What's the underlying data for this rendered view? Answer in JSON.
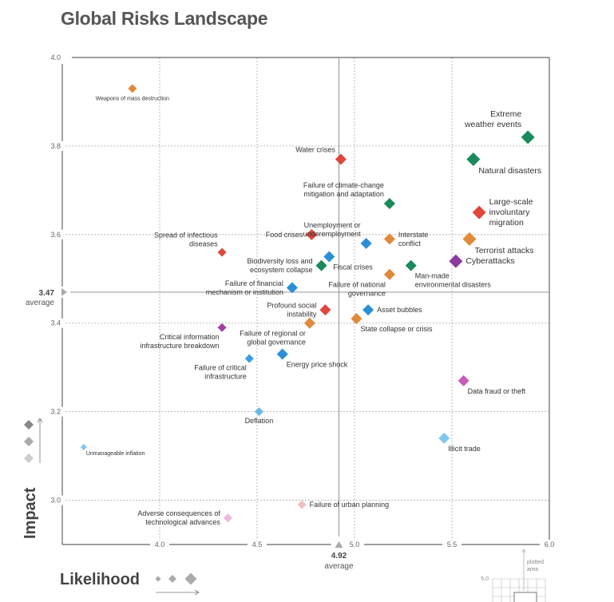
{
  "chart_data": {
    "type": "scatter",
    "title": "Global Risks Landscape",
    "xlabel": "Likelihood",
    "ylabel": "Impact",
    "xlim": [
      3.5,
      6.0
    ],
    "ylim": [
      2.9,
      4.0
    ],
    "x_ticks": [
      "4.0",
      "4.5",
      "5.0",
      "5.5",
      "6.0"
    ],
    "x_tick_values": [
      4.0,
      4.5,
      5.0,
      5.5,
      6.0
    ],
    "y_ticks": [
      "4.0",
      "3.8",
      "3.6",
      "3.4",
      "3.2",
      "3.0"
    ],
    "y_tick_values": [
      4.0,
      3.8,
      3.6,
      3.4,
      3.2,
      3.0
    ],
    "grid": true,
    "x_average": {
      "value": 4.92,
      "label": "4.92",
      "text": "average"
    },
    "y_average": {
      "value": 3.47,
      "label": "3.47",
      "text": "average"
    },
    "category_colors": {
      "economic": "#2b8fd6",
      "environmental": "#1a8a5a",
      "geopolitical": "#e08a3a",
      "societal": "#e0463a",
      "technological": "#8e3a9e"
    },
    "points": [
      {
        "name": "Weapons of mass destruction",
        "lines": [
          "Weapons of mass destruction"
        ],
        "x": 3.86,
        "y": 3.93,
        "color": "#e08a3a",
        "size": "small",
        "label_pos": "below"
      },
      {
        "name": "Extreme weather events",
        "lines": [
          "Extreme",
          "weather events"
        ],
        "x": 5.89,
        "y": 3.82,
        "color": "#1a8a5a",
        "size": "large",
        "label_pos": "above-left"
      },
      {
        "name": "Natural disasters",
        "lines": [
          "Natural disasters"
        ],
        "x": 5.61,
        "y": 3.77,
        "color": "#1a8a5a",
        "size": "large",
        "label_pos": "below-right"
      },
      {
        "name": "Water crises",
        "lines": [
          "Water crises"
        ],
        "x": 4.93,
        "y": 3.77,
        "color": "#e0463a",
        "size": "medium",
        "label_pos": "above-left"
      },
      {
        "name": "Failure of climate-change mitigation and adaptation",
        "lines": [
          "Failure of climate-change",
          "mitigation and adaptation"
        ],
        "x": 5.18,
        "y": 3.67,
        "color": "#1a8a5a",
        "size": "medium",
        "label_pos": "above-left"
      },
      {
        "name": "Large-scale involuntary migration",
        "lines": [
          "Large-scale",
          "involuntary",
          "migration"
        ],
        "x": 5.64,
        "y": 3.65,
        "color": "#e0463a",
        "size": "large",
        "label_pos": "right"
      },
      {
        "name": "Food crises",
        "lines": [
          "Food crises"
        ],
        "x": 4.78,
        "y": 3.6,
        "color": "#e0463a",
        "size": "medium",
        "label_pos": "left"
      },
      {
        "name": "Unemployment or underemployment",
        "lines": [
          "Unemployment or",
          "underemployment"
        ],
        "x": 5.06,
        "y": 3.58,
        "color": "#2b8fd6",
        "size": "medium",
        "label_pos": "above-left"
      },
      {
        "name": "Interstate conflict",
        "lines": [
          "Interstate",
          "conflict"
        ],
        "x": 5.18,
        "y": 3.59,
        "color": "#e08a3a",
        "size": "medium",
        "label_pos": "right"
      },
      {
        "name": "Terrorist attacks",
        "lines": [
          "Terrorist attacks"
        ],
        "x": 5.59,
        "y": 3.59,
        "color": "#e08a3a",
        "size": "large",
        "label_pos": "below-right"
      },
      {
        "name": "Spread of infectious diseases",
        "lines": [
          "Spread of infectious",
          "diseases"
        ],
        "x": 4.32,
        "y": 3.56,
        "color": "#e0463a",
        "size": "small",
        "label_pos": "above-left"
      },
      {
        "name": "Fiscal crises",
        "lines": [
          "Fiscal crises"
        ],
        "x": 4.87,
        "y": 3.55,
        "color": "#2b8fd6",
        "size": "medium",
        "label_pos": "below-right"
      },
      {
        "name": "Biodiversity loss and ecosystem collapse",
        "lines": [
          "Biodiversity loss and",
          "ecosystem collapse"
        ],
        "x": 4.83,
        "y": 3.53,
        "color": "#1a8a5a",
        "size": "medium",
        "label_pos": "left"
      },
      {
        "name": "Cyberattacks",
        "lines": [
          "Cyberattacks"
        ],
        "x": 5.52,
        "y": 3.54,
        "color": "#8e3a9e",
        "size": "large",
        "label_pos": "right"
      },
      {
        "name": "Man-made environmental disasters",
        "lines": [
          "Man-made",
          "environmental disasters"
        ],
        "x": 5.29,
        "y": 3.53,
        "color": "#1a8a5a",
        "size": "medium",
        "label_pos": "below-right"
      },
      {
        "name": "Failure of national governance",
        "lines": [
          "Failure of national",
          "governance"
        ],
        "x": 5.18,
        "y": 3.51,
        "color": "#e08a3a",
        "size": "medium",
        "label_pos": "below-left"
      },
      {
        "name": "Failure of financial mechanism or institution",
        "lines": [
          "Failure of financial",
          "mechanism or institution"
        ],
        "x": 4.68,
        "y": 3.48,
        "color": "#2b8fd6",
        "size": "medium",
        "label_pos": "left"
      },
      {
        "name": "Profound social instability",
        "lines": [
          "Profound social",
          "instability"
        ],
        "x": 4.85,
        "y": 3.43,
        "color": "#e0463a",
        "size": "medium",
        "label_pos": "left"
      },
      {
        "name": "Asset bubbles",
        "lines": [
          "Asset bubbles"
        ],
        "x": 5.07,
        "y": 3.43,
        "color": "#2b8fd6",
        "size": "medium",
        "label_pos": "right"
      },
      {
        "name": "State collapse or crisis",
        "lines": [
          "State collapse or crisis"
        ],
        "x": 5.01,
        "y": 3.41,
        "color": "#e08a3a",
        "size": "medium",
        "label_pos": "below-right"
      },
      {
        "name": "Failure of regional or global governance",
        "lines": [
          "Failure of regional or",
          "global governance"
        ],
        "x": 4.77,
        "y": 3.4,
        "color": "#e08a3a",
        "size": "medium",
        "label_pos": "below-left"
      },
      {
        "name": "Critical information infrastructure breakdown",
        "lines": [
          "Critical information",
          "infrastructure breakdown"
        ],
        "x": 4.32,
        "y": 3.39,
        "color": "#a040a8",
        "size": "small",
        "label_pos": "below-left"
      },
      {
        "name": "Energy price shock",
        "lines": [
          "Energy price shock"
        ],
        "x": 4.63,
        "y": 3.33,
        "color": "#2b8fd6",
        "size": "medium",
        "label_pos": "below-right"
      },
      {
        "name": "Failure of critical infrastructure",
        "lines": [
          "Failure of critical",
          "infrastructure"
        ],
        "x": 4.46,
        "y": 3.32,
        "color": "#3a9ee0",
        "size": "small",
        "label_pos": "below-left"
      },
      {
        "name": "Data fraud or theft",
        "lines": [
          "Data fraud or theft"
        ],
        "x": 5.56,
        "y": 3.27,
        "color": "#c85ab8",
        "size": "medium",
        "label_pos": "below-right"
      },
      {
        "name": "Deflation",
        "lines": [
          "Deflation"
        ],
        "x": 4.51,
        "y": 3.2,
        "color": "#6ab8e8",
        "size": "small",
        "label_pos": "below"
      },
      {
        "name": "Illicit trade",
        "lines": [
          "Illicit trade"
        ],
        "x": 5.46,
        "y": 3.14,
        "color": "#80c8ee",
        "size": "medium",
        "label_pos": "below-right"
      },
      {
        "name": "Unmanageable inflation",
        "lines": [
          "Unmanageable inflation"
        ],
        "x": 3.61,
        "y": 3.12,
        "color": "#80c8ee",
        "size": "xsmall",
        "label_pos": "below-right-small"
      },
      {
        "name": "Failure of urban planning",
        "lines": [
          "Failure of urban planning"
        ],
        "x": 4.73,
        "y": 2.99,
        "color": "#f2c0c0",
        "size": "small",
        "label_pos": "right"
      },
      {
        "name": "Adverse consequences of technological advances",
        "lines": [
          "Adverse consequences of",
          "technological advances"
        ],
        "x": 4.35,
        "y": 2.96,
        "color": "#eab8e0",
        "size": "small",
        "label_pos": "left"
      }
    ],
    "legend": {
      "impact_scale": [
        "high",
        "medium",
        "low"
      ],
      "likelihood_scale": [
        "low",
        "medium",
        "high"
      ]
    },
    "inset": {
      "tick_label": "5.0",
      "caption_lines": [
        "plotted",
        "area"
      ]
    }
  }
}
